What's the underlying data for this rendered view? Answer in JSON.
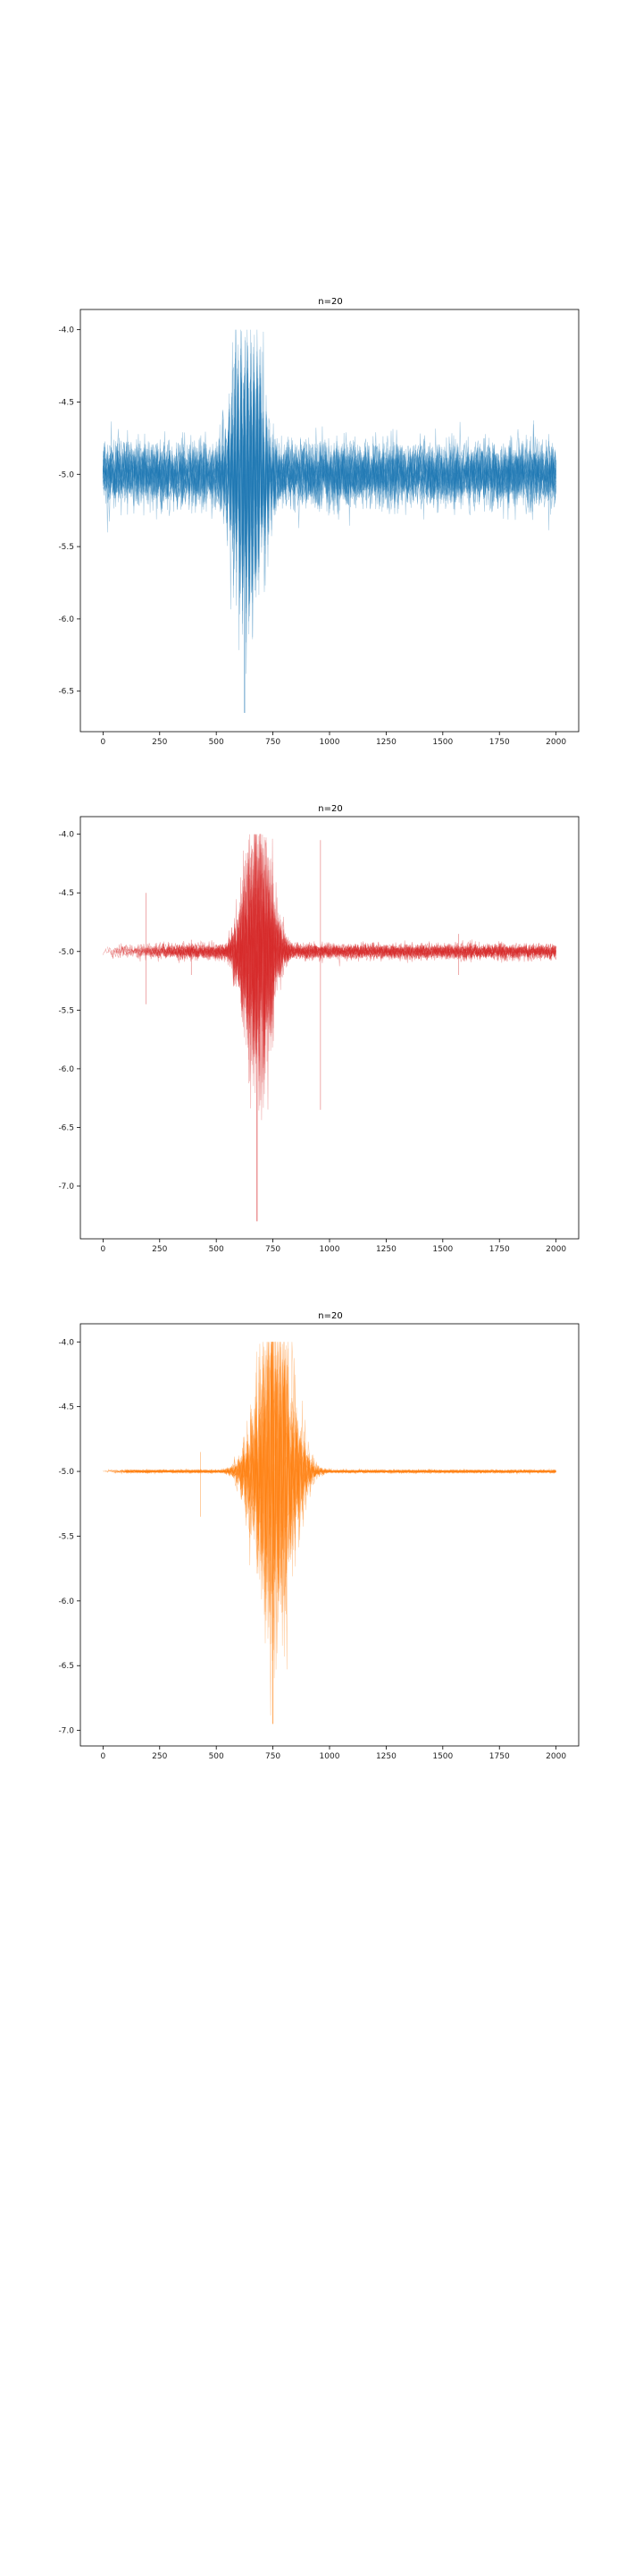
{
  "chart_data": [
    {
      "type": "line",
      "title": "n=20",
      "xlabel": "",
      "ylabel": "",
      "xlim": [
        -100,
        2100
      ],
      "ylim": [
        -6.78,
        -3.86
      ],
      "xticks": [
        0,
        250,
        500,
        750,
        1000,
        1250,
        1500,
        1750,
        2000
      ],
      "xtick_labels": [
        "0",
        "250",
        "500",
        "750",
        "1000",
        "1250",
        "1500",
        "1750",
        "2000"
      ],
      "yticks": [
        -4.0,
        -4.5,
        -5.0,
        -5.5,
        -6.0,
        -6.5
      ],
      "ytick_labels": [
        "-4.0",
        "-4.5",
        "-5.0",
        "-5.5",
        "-6.0",
        "-6.5"
      ],
      "series_color": "#1f77b4",
      "series_count": 20,
      "grid": false,
      "x_range": [
        0,
        2000
      ],
      "baseline": -5.0,
      "background_noise": 0.1,
      "burst_center": 640,
      "burst_width": 60,
      "burst_amplitude": 0.6,
      "burst_frequency": 0.45,
      "series_onset_x": [
        0,
        0,
        0,
        0,
        0,
        0,
        0,
        0,
        0,
        0,
        0,
        0,
        0,
        0,
        0,
        0,
        0,
        0,
        0,
        0
      ],
      "peak": {
        "x": 625,
        "y": -6.65
      },
      "max": -4.0
    },
    {
      "type": "line",
      "title": "n=20",
      "xlabel": "",
      "ylabel": "",
      "xlim": [
        -100,
        2100
      ],
      "ylim": [
        -7.45,
        -3.85
      ],
      "xticks": [
        0,
        250,
        500,
        750,
        1000,
        1250,
        1500,
        1750,
        2000
      ],
      "xtick_labels": [
        "0",
        "250",
        "500",
        "750",
        "1000",
        "1250",
        "1500",
        "1750",
        "2000"
      ],
      "yticks": [
        -4.0,
        -4.5,
        -5.0,
        -5.5,
        -6.0,
        -6.5,
        -7.0
      ],
      "ytick_labels": [
        "-4.0",
        "-4.5",
        "-5.0",
        "-5.5",
        "-6.0",
        "-6.5",
        "-7.0"
      ],
      "series_color": "#d62728",
      "series_count": 20,
      "grid": false,
      "x_range": [
        0,
        2000
      ],
      "baseline": -5.0,
      "background_noise": 0.03,
      "burst_center": 680,
      "burst_width": 55,
      "burst_amplitude": 0.7,
      "burst_frequency": 0.5,
      "series_onset_x": [
        0,
        20,
        40,
        60,
        80,
        100,
        120,
        140,
        160,
        180,
        200,
        220,
        240,
        260,
        280,
        300,
        320,
        340,
        360,
        380
      ],
      "peak": {
        "x": 680,
        "y": -7.3
      },
      "max": -4.0,
      "spikes": [
        {
          "x": 960,
          "low": -6.35,
          "high": -4.05
        },
        {
          "x": 390,
          "low": -5.2,
          "high": -4.9
        },
        {
          "x": 1570,
          "low": -5.2,
          "high": -4.85
        },
        {
          "x": 190,
          "low": -5.45,
          "high": -4.5
        }
      ]
    },
    {
      "type": "line",
      "title": "n=20",
      "xlabel": "",
      "ylabel": "",
      "xlim": [
        -100,
        2100
      ],
      "ylim": [
        -7.12,
        -3.86
      ],
      "xticks": [
        0,
        250,
        500,
        750,
        1000,
        1250,
        1500,
        1750,
        2000
      ],
      "xtick_labels": [
        "0",
        "250",
        "500",
        "750",
        "1000",
        "1250",
        "1500",
        "1750",
        "2000"
      ],
      "yticks": [
        -4.0,
        -4.5,
        -5.0,
        -5.5,
        -6.0,
        -6.5,
        -7.0
      ],
      "ytick_labels": [
        "-4.0",
        "-4.5",
        "-5.0",
        "-5.5",
        "-6.0",
        "-6.5",
        "-7.0"
      ],
      "series_color": "#ff7f0e",
      "series_count": 20,
      "grid": false,
      "x_range": [
        0,
        2000
      ],
      "baseline": -5.0,
      "background_noise": 0.006,
      "burst_center": 760,
      "burst_width": 70,
      "burst_amplitude": 0.75,
      "burst_frequency": 0.35,
      "series_onset_x": [
        0,
        10,
        20,
        30,
        40,
        50,
        60,
        70,
        80,
        90,
        100,
        100,
        100,
        100,
        100,
        100,
        100,
        100,
        100,
        100
      ],
      "peak": {
        "x": 750,
        "y": -6.95
      },
      "max": -4.0,
      "spikes": [
        {
          "x": 430,
          "low": -5.35,
          "high": -4.85
        }
      ]
    }
  ]
}
